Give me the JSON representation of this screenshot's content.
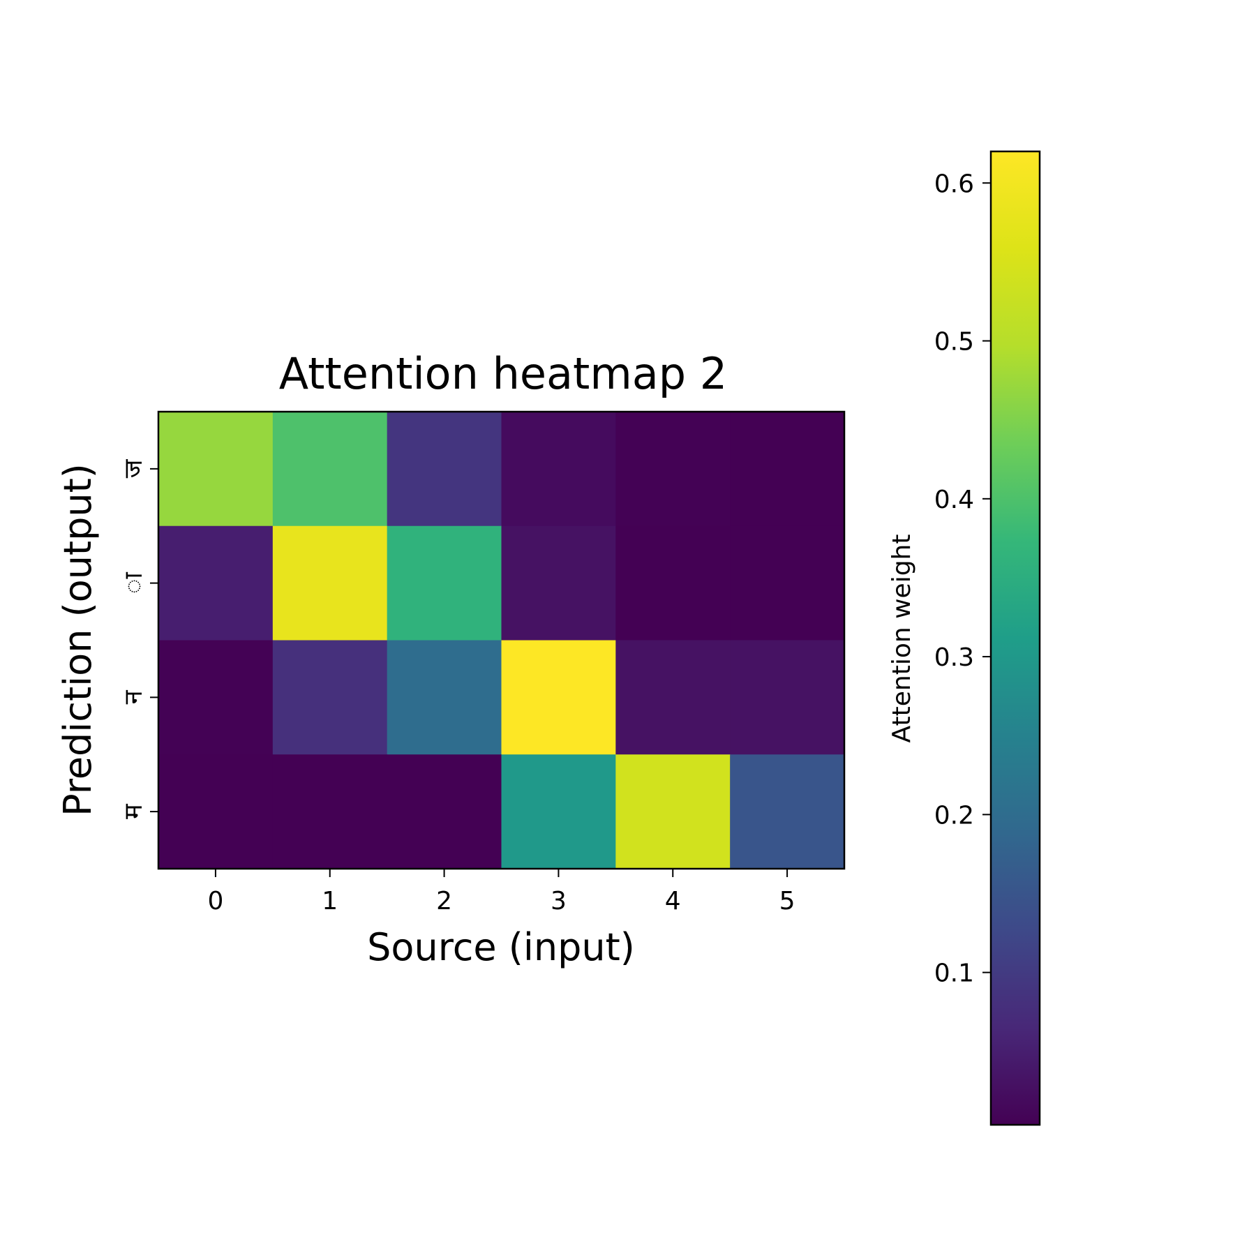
{
  "chart_data": {
    "type": "heatmap",
    "title": "Attention heatmap 2",
    "xlabel": "Source (input)",
    "ylabel": "Prediction (output)",
    "x_ticks": [
      "0",
      "1",
      "2",
      "3",
      "4",
      "5"
    ],
    "y_ticks": [
      "ज",
      "ा",
      "न",
      "म"
    ],
    "values": [
      [
        0.47,
        0.4,
        0.09,
        0.02,
        0.005,
        0.004
      ],
      [
        0.05,
        0.58,
        0.36,
        0.03,
        0.004,
        0.004
      ],
      [
        0.005,
        0.08,
        0.2,
        0.62,
        0.03,
        0.03
      ],
      [
        0.003,
        0.003,
        0.003,
        0.3,
        0.54,
        0.15
      ]
    ],
    "colormap": "viridis",
    "colorbar": {
      "label": "Attention weight",
      "range": [
        0.0035,
        0.62
      ],
      "ticks": [
        0.1,
        0.2,
        0.3,
        0.4,
        0.5,
        0.6
      ],
      "tick_labels": [
        "0.1",
        "0.2",
        "0.3",
        "0.4",
        "0.5",
        "0.6"
      ]
    },
    "grid": false
  }
}
